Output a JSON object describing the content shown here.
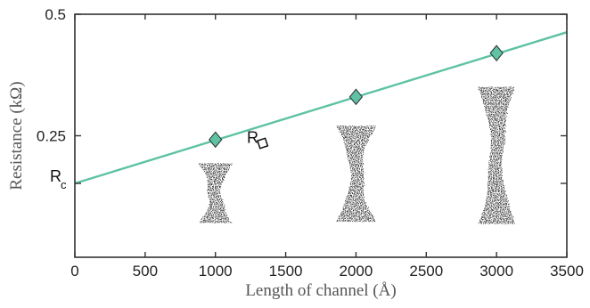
{
  "chart_data": {
    "type": "line",
    "title": "",
    "xlabel": "Length of channel (Å)",
    "ylabel": "Resistance (kΩ)",
    "xlim": [
      0,
      3500
    ],
    "ylim": [
      0,
      0.5
    ],
    "x_ticks": [
      0,
      500,
      1000,
      1500,
      2000,
      2500,
      3000,
      3500
    ],
    "x_tick_labels": [
      "0",
      "500",
      "1000",
      "1500",
      "2000",
      "2500",
      "3000",
      "3500"
    ],
    "y_ticks": [
      0.25,
      0.5
    ],
    "y_tick_labels": [
      "0.25",
      "0.5"
    ],
    "series": [
      {
        "kind": "fit-line",
        "x": [
          0,
          3500
        ],
        "y": [
          0.152,
          0.463
        ],
        "color": "#5ec2a4"
      },
      {
        "kind": "markers",
        "marker": "diamond",
        "x": [
          1000,
          2000,
          3000
        ],
        "y": [
          0.242,
          0.33,
          0.42
        ],
        "color": "#5ec2a4"
      }
    ],
    "annotations": {
      "rc_label": "R",
      "rc_sub": "c",
      "rc_y": 0.152,
      "rsq_label": "R",
      "rsq_x": 1300,
      "rsq_y": 0.235
    },
    "channel_sketches": [
      {
        "x_center": 1000,
        "half_width": 120,
        "y_top": 0.193,
        "y_bottom": 0.07
      },
      {
        "x_center": 2000,
        "half_width": 140,
        "y_top": 0.27,
        "y_bottom": 0.075
      },
      {
        "x_center": 3000,
        "half_width": 130,
        "y_top": 0.35,
        "y_bottom": 0.07
      }
    ],
    "grid": false,
    "legend": "none"
  }
}
